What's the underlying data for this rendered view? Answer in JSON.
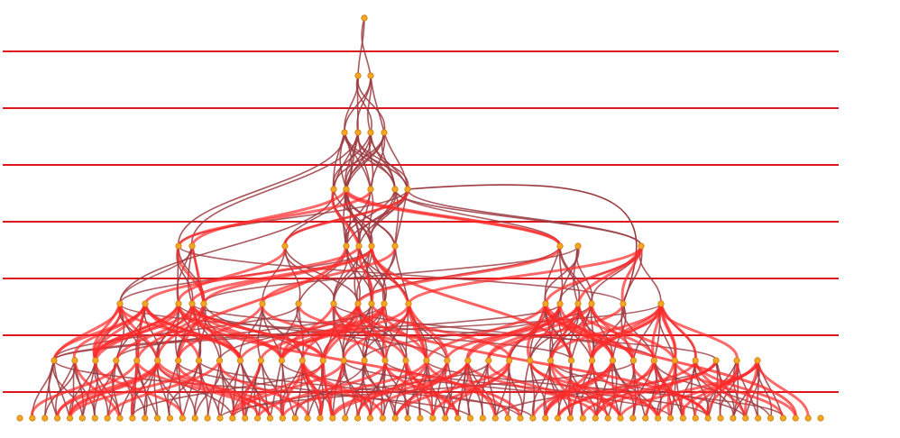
{
  "diagram": {
    "type": "layered-graph",
    "colors": {
      "background": "#ffffff",
      "layer_line": "#e0161d",
      "edge_dark": "#9b3a3f",
      "edge_highlight": "#ff2a2a",
      "node_fill": "#f5a623",
      "node_stroke": "#c77d0b"
    },
    "levels": [
      {
        "level": 0,
        "nodes": 1
      },
      {
        "level": 1,
        "nodes": 2
      },
      {
        "level": 2,
        "nodes": 4
      },
      {
        "level": 3,
        "nodes": 6
      },
      {
        "level": 4,
        "nodes": 10
      },
      {
        "level": 5,
        "nodes": 18
      },
      {
        "level": 6,
        "nodes": 35
      },
      {
        "level": 7,
        "nodes": 65
      }
    ],
    "separator_lines": 7
  }
}
